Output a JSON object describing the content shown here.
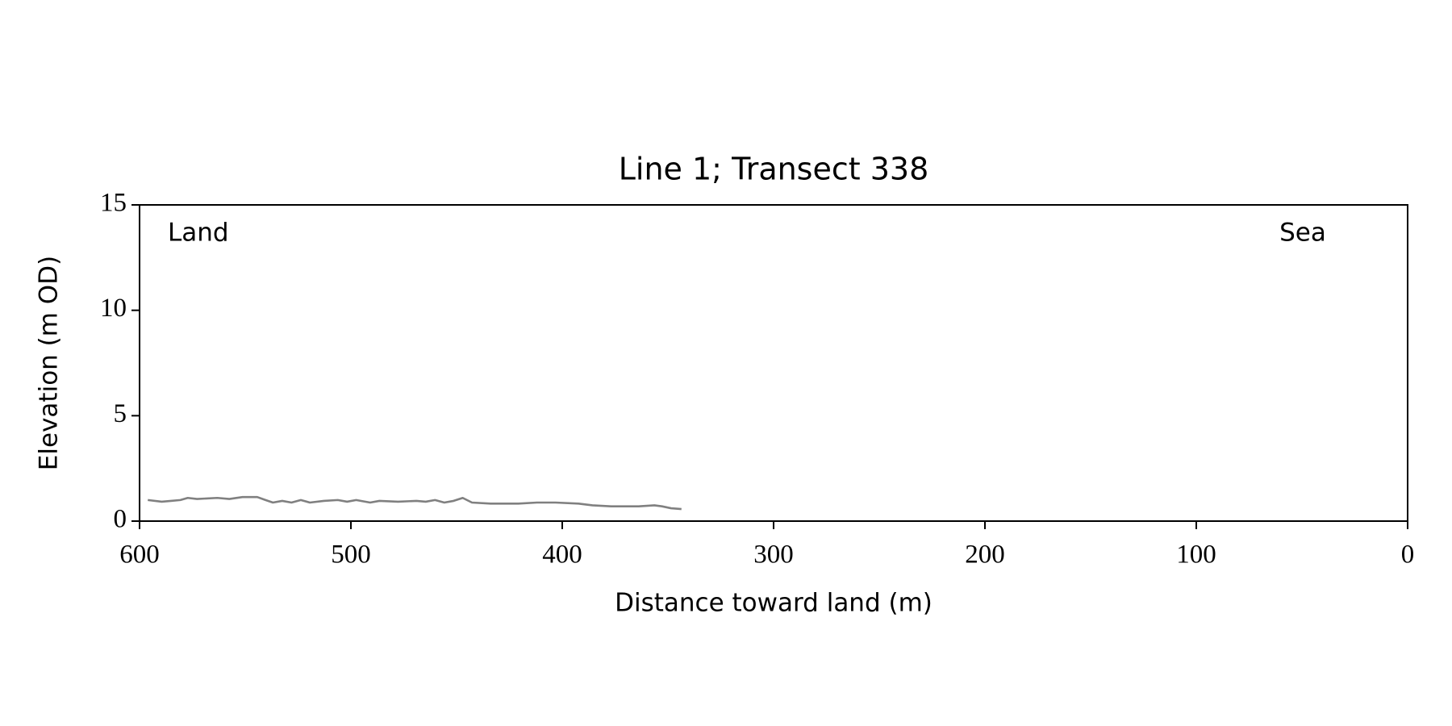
{
  "chart_data": {
    "type": "line",
    "title": "Line 1; Transect 338",
    "x_label": "Distance toward land (m)",
    "y_label": "Elevation (m OD)",
    "annotations": [
      "Land",
      "Sea"
    ],
    "color": "#808080",
    "x": [
      596.1,
      589.5,
      585.1,
      580.7,
      577.2,
      572.8,
      563.2,
      557.5,
      551.3,
      544.3,
      540.4,
      536.9,
      532.5,
      528.1,
      523.7,
      519.4,
      512.8,
      506.2,
      501.8,
      497.5,
      490.9,
      486.5,
      477.7,
      469.0,
      464.6,
      460.2,
      455.8,
      451.4,
      447.1,
      442.7,
      433.9,
      420.8,
      412.0,
      403.2,
      392.3,
      385.7,
      376.9,
      368.2,
      363.8,
      356.4,
      352.8,
      348.5,
      343.6
    ],
    "values": [
      1.0,
      0.92,
      0.96,
      1.0,
      1.1,
      1.05,
      1.1,
      1.05,
      1.14,
      1.14,
      1.0,
      0.88,
      0.96,
      0.88,
      1.0,
      0.88,
      0.96,
      1.0,
      0.92,
      1.0,
      0.88,
      0.96,
      0.92,
      0.96,
      0.92,
      1.0,
      0.88,
      0.96,
      1.1,
      0.88,
      0.83,
      0.83,
      0.88,
      0.88,
      0.83,
      0.75,
      0.7,
      0.7,
      0.7,
      0.75,
      0.7,
      0.61,
      0.57
    ],
    "xlim": [
      600,
      0
    ],
    "ylim": [
      0,
      15
    ],
    "xticks": [
      600,
      500,
      400,
      300,
      200,
      100,
      0
    ],
    "yticks": [
      0,
      5,
      10,
      15
    ]
  }
}
